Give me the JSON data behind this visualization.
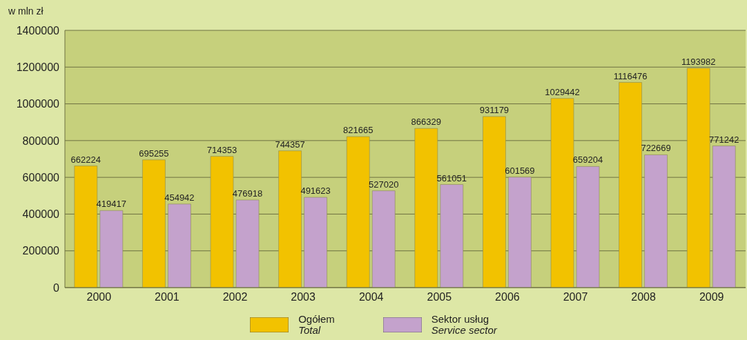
{
  "chart_data": {
    "type": "bar",
    "ylabel": "w mln zł",
    "categories": [
      "2000",
      "2001",
      "2002",
      "2003",
      "2004",
      "2005",
      "2006",
      "2007",
      "2008",
      "2009"
    ],
    "series": [
      {
        "name": "Ogółem\nTotal",
        "color": "#f2c200",
        "values": [
          662224,
          695255,
          714353,
          744357,
          821665,
          866329,
          931179,
          1029442,
          1116476,
          1193982
        ]
      },
      {
        "name": "Sektor usług\nService sector",
        "color": "#c4a2cc",
        "values": [
          419417,
          454942,
          476918,
          491623,
          527020,
          561051,
          601569,
          659204,
          722669,
          771242
        ]
      }
    ],
    "ylim": [
      0,
      1400000
    ],
    "yticks": [
      0,
      200000,
      400000,
      600000,
      800000,
      1000000,
      1200000,
      1400000
    ],
    "grid": "y",
    "legend": "bottom",
    "data_labels": true
  }
}
